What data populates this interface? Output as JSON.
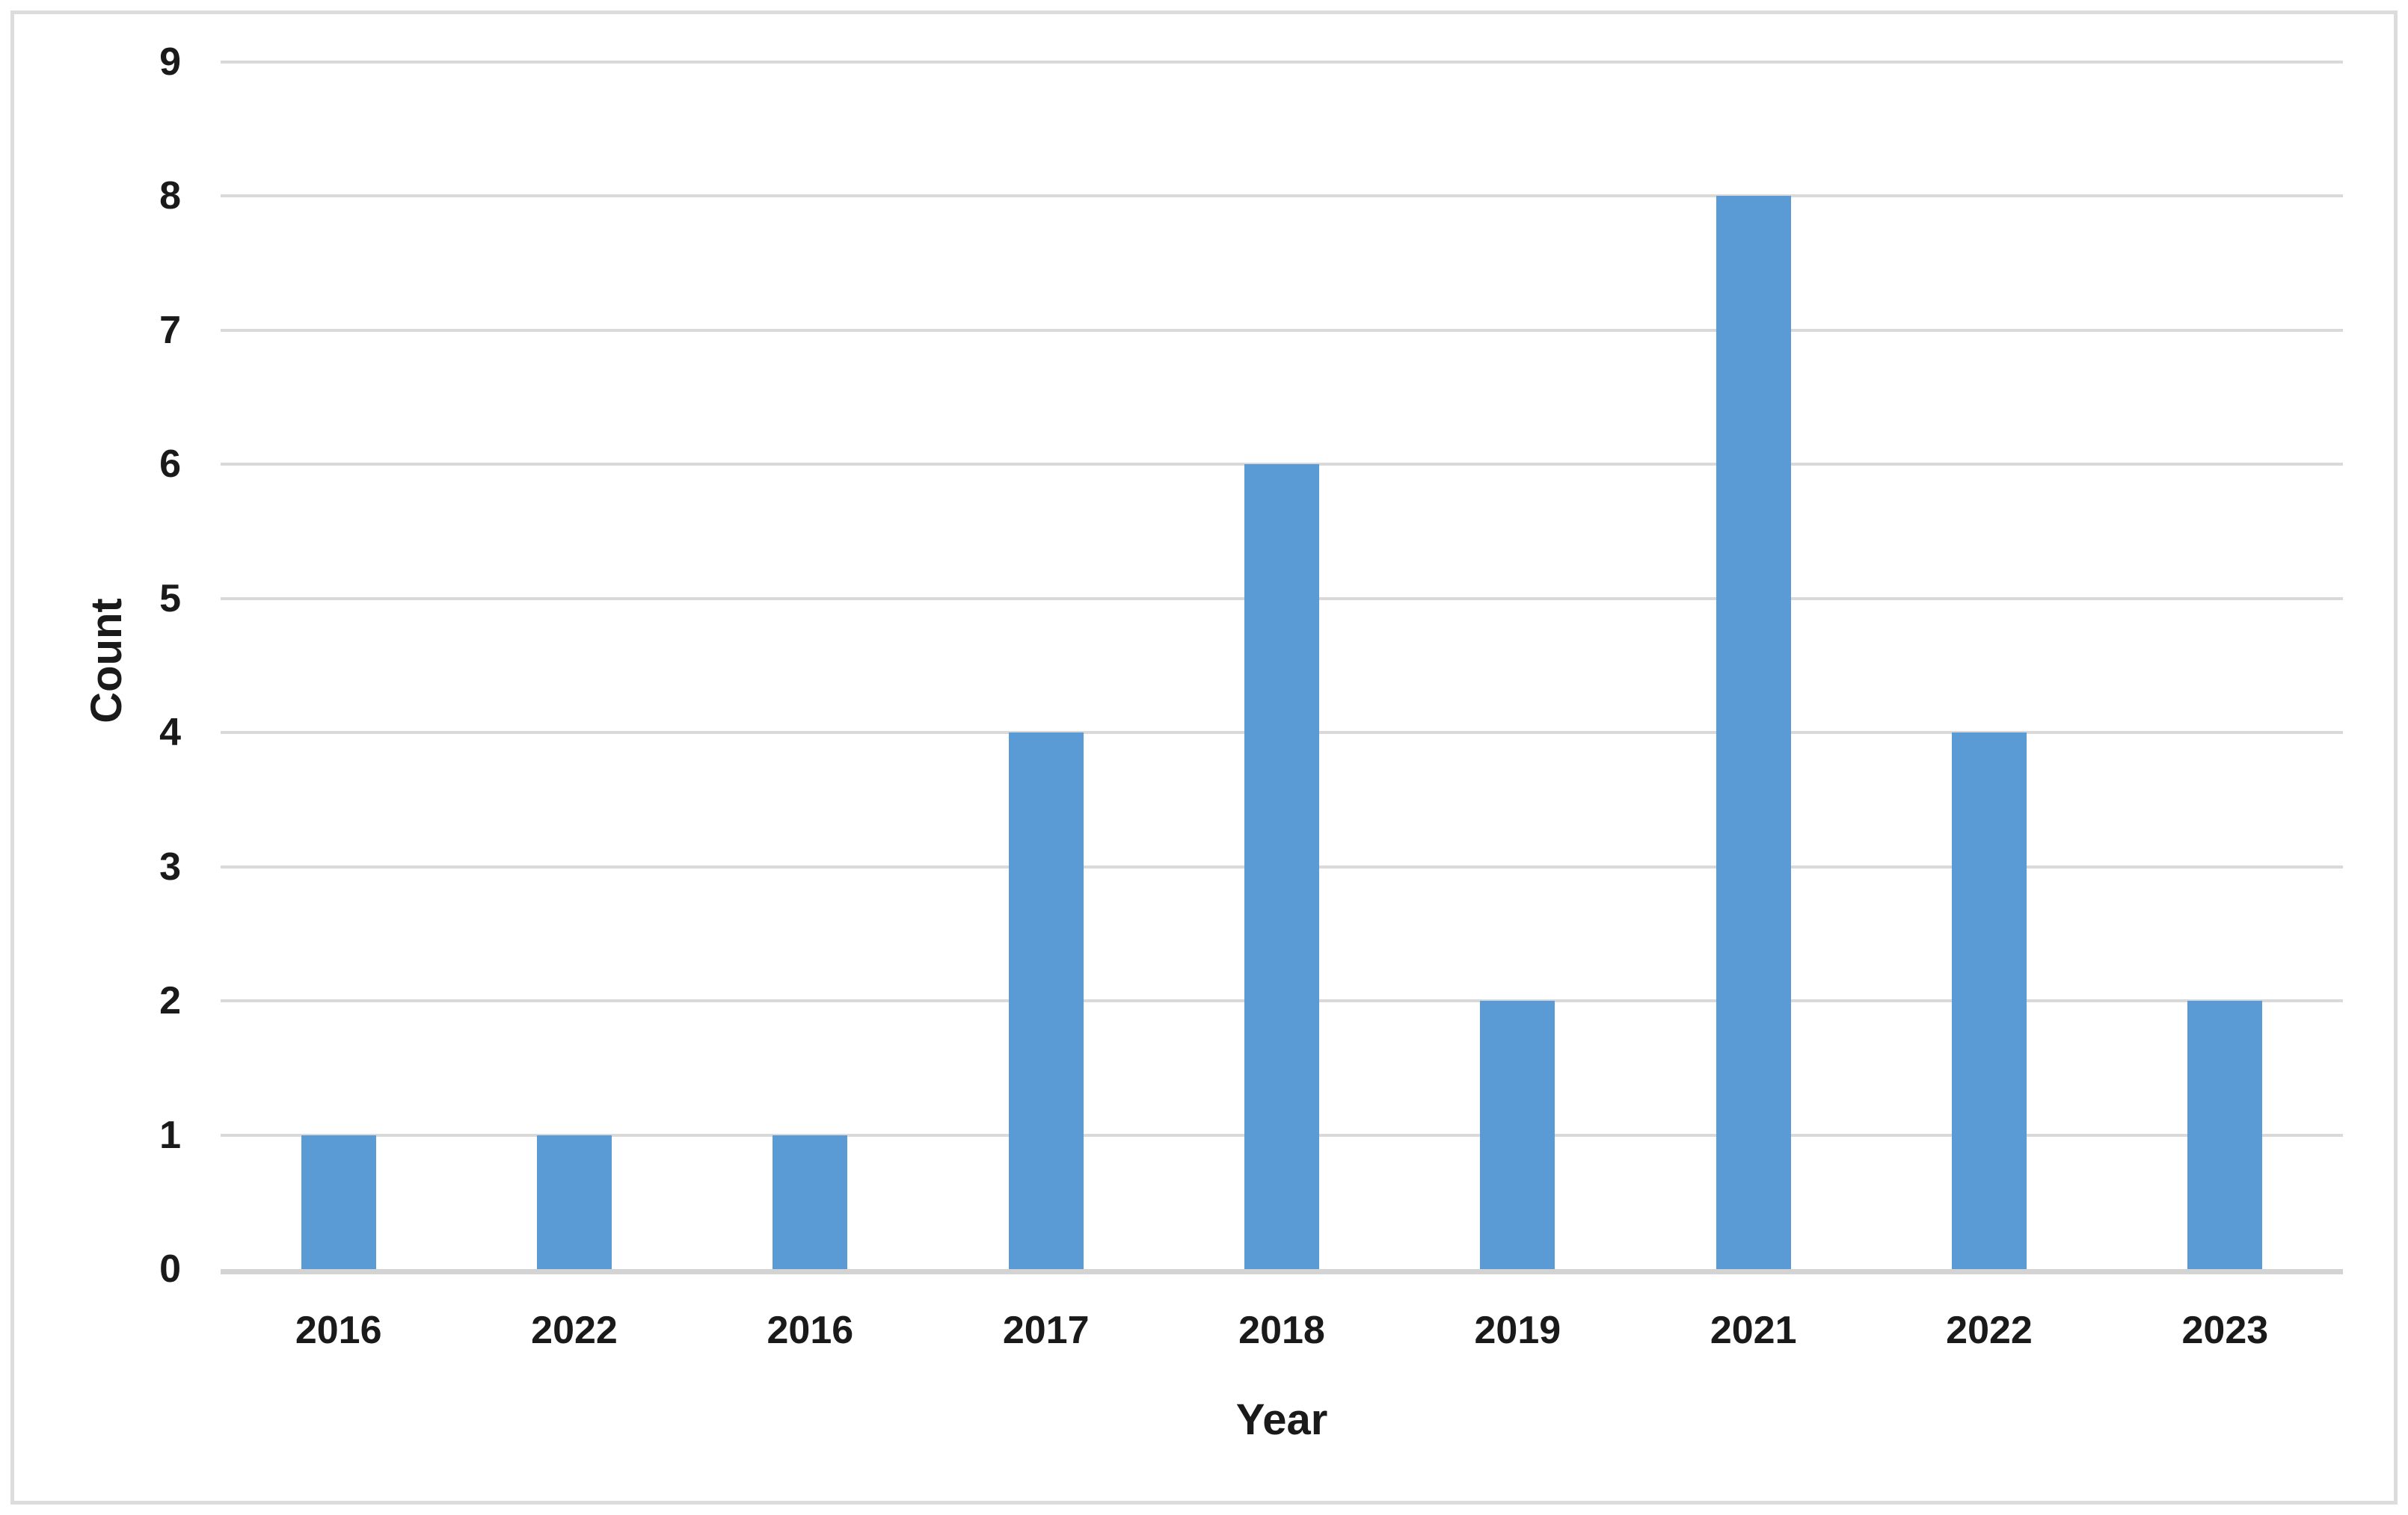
{
  "chart_data": {
    "type": "bar",
    "title": "",
    "xlabel": "Year",
    "ylabel": "Count",
    "categories": [
      "2016",
      "2022",
      "2016",
      "2017",
      "2018",
      "2019",
      "2021",
      "2022",
      "2023"
    ],
    "values": [
      1,
      1,
      1,
      4,
      6,
      2,
      8,
      4,
      2
    ],
    "ylim": [
      0,
      9
    ],
    "yticks": [
      0,
      1,
      2,
      3,
      4,
      5,
      6,
      7,
      8,
      9
    ],
    "grid": "horizontal",
    "legend": "none",
    "colors": {
      "bar": "#5B9BD5",
      "gridline": "#D9D9D9",
      "axis_line": "#D3D3D3",
      "frame_border": "#DCDCDC",
      "text": "#1A1A1A",
      "background": "#FFFFFF"
    }
  }
}
